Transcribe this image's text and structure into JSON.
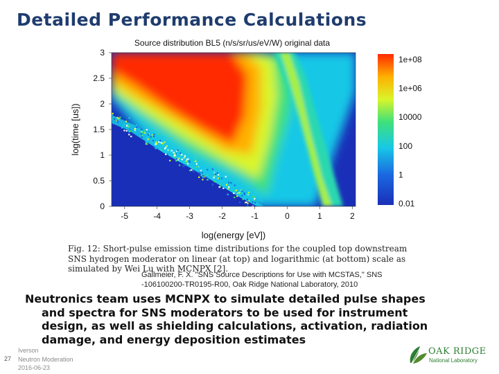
{
  "slide": {
    "title": "Detailed Performance Calculations",
    "caption": "Fig. 12: Short-pulse emission time distributions for the coupled top downstream SNS hydrogen moderator on linear (at top) and logarithmic (at bottom) scale as simulated by Wei Lu with MCNPX [2].",
    "citation": "Gallmeier, F. X. \"SNS Source Descriptions for Use with MCSTAS,\" SNS -106100200-TR0195-R00, Oak Ridge National Laboratory, 2010",
    "body_line1": "Neutronics team uses MCNPX to simulate detailed pulse shapes",
    "body_line2": "and spectra for SNS moderators to be used for instrument",
    "body_line3": "design, as well as shielding calculations, activation, radiation",
    "body_line4": "damage, and energy deposition estimates"
  },
  "footer": {
    "slide_number": "27",
    "author": "Iverson",
    "topic": "Neutron Moderation",
    "date": "2016-06-23"
  },
  "logo": {
    "line1": "OAK RIDGE",
    "line2": "National Laboratory",
    "color": "#2e7d32"
  },
  "chart_data": {
    "type": "heatmap",
    "title": "Source distribution BL5 (n/s/sr/us/eV/W) original data",
    "xlabel": "log(energy [eV])",
    "ylabel": "log(time [us])",
    "xlim": [
      -5.4,
      2.1
    ],
    "ylim": [
      0,
      3
    ],
    "x_ticks": [
      "-5",
      "-4",
      "-3",
      "-2",
      "-1",
      "0",
      "1",
      "2"
    ],
    "y_ticks": [
      "0",
      "0.5",
      "1",
      "1.5",
      "2",
      "2.5",
      "3"
    ],
    "colorbar_scale": "log",
    "colorbar_ticks": [
      "1e+08",
      "1e+06",
      "10000",
      "100",
      "1",
      "0.01"
    ],
    "colors": {
      "low": "#1a2fb8",
      "mid": "#18c8e6",
      "high": "#ff2a00"
    }
  }
}
